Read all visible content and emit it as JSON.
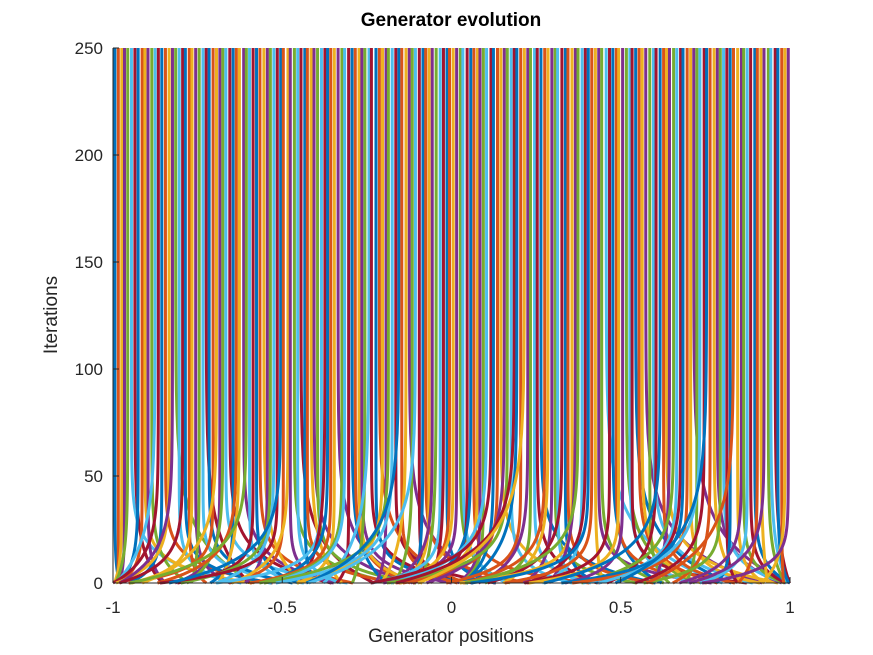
{
  "chart_data": {
    "type": "line",
    "title": "Generator evolution",
    "xlabel": "Generator positions",
    "ylabel": "Iterations",
    "xlim": [
      -1,
      1
    ],
    "ylim": [
      0,
      250
    ],
    "x_ticks": [
      "-1",
      "-0.5",
      "0",
      "0.5",
      "1"
    ],
    "y_ticks": [
      "0",
      "50",
      "100",
      "150",
      "200",
      "250"
    ],
    "grid": false,
    "legend": "none",
    "series_colors": [
      "#0072BD",
      "#D95319",
      "#EDB120",
      "#7E2F8E",
      "#77AC30",
      "#4DBEEE",
      "#A2142F"
    ],
    "series_count": 200,
    "series_description": "200 generator trajectories starting clustered near the interval and spreading to near-uniform final positions on [-1, 1], held constant from about iteration 50 to 250",
    "final_positions_range": [
      -0.995,
      0.995
    ],
    "iterations": 250
  }
}
